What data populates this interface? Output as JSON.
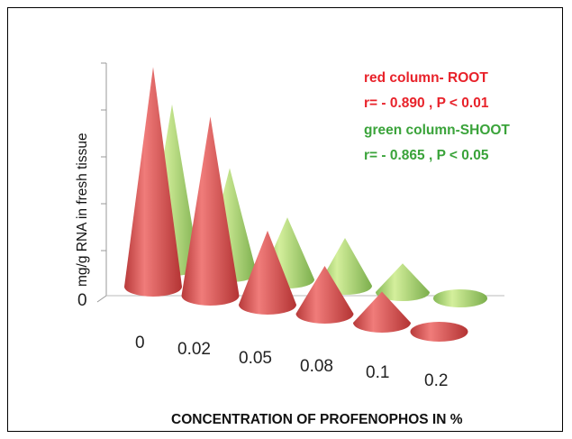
{
  "chart_data": {
    "type": "bar",
    "subtype": "3d-cone",
    "categories": [
      "0",
      "0.02",
      "0.05",
      "0.08",
      "0.1",
      "0.2"
    ],
    "series": [
      {
        "name": "ROOT",
        "color": "#d9504f",
        "values": [
          4.6,
          3.75,
          1.55,
          1.0,
          0.65,
          0.0
        ]
      },
      {
        "name": "SHOOT",
        "color": "#9fd06e",
        "values": [
          3.4,
          2.2,
          1.3,
          1.0,
          0.6,
          0.0
        ]
      }
    ],
    "ylabel": "mg/g RNA in fresh tissue",
    "xlabel": "CONCENTRATION OF PROFENOPHOS IN %",
    "y_tick_labels": [
      "0"
    ],
    "ylim": [
      0,
      5
    ],
    "legend_placement": "top-right",
    "annotations": [
      {
        "text": "red column- ROOT",
        "color": "#e8222a"
      },
      {
        "text": "r= - 0.890 , P < 0.01",
        "color": "#e8222a"
      },
      {
        "text": "green column-SHOOT",
        "color": "#3aa33a"
      },
      {
        "text": "r= - 0.865 , P < 0.05",
        "color": "#3aa33a"
      }
    ]
  }
}
